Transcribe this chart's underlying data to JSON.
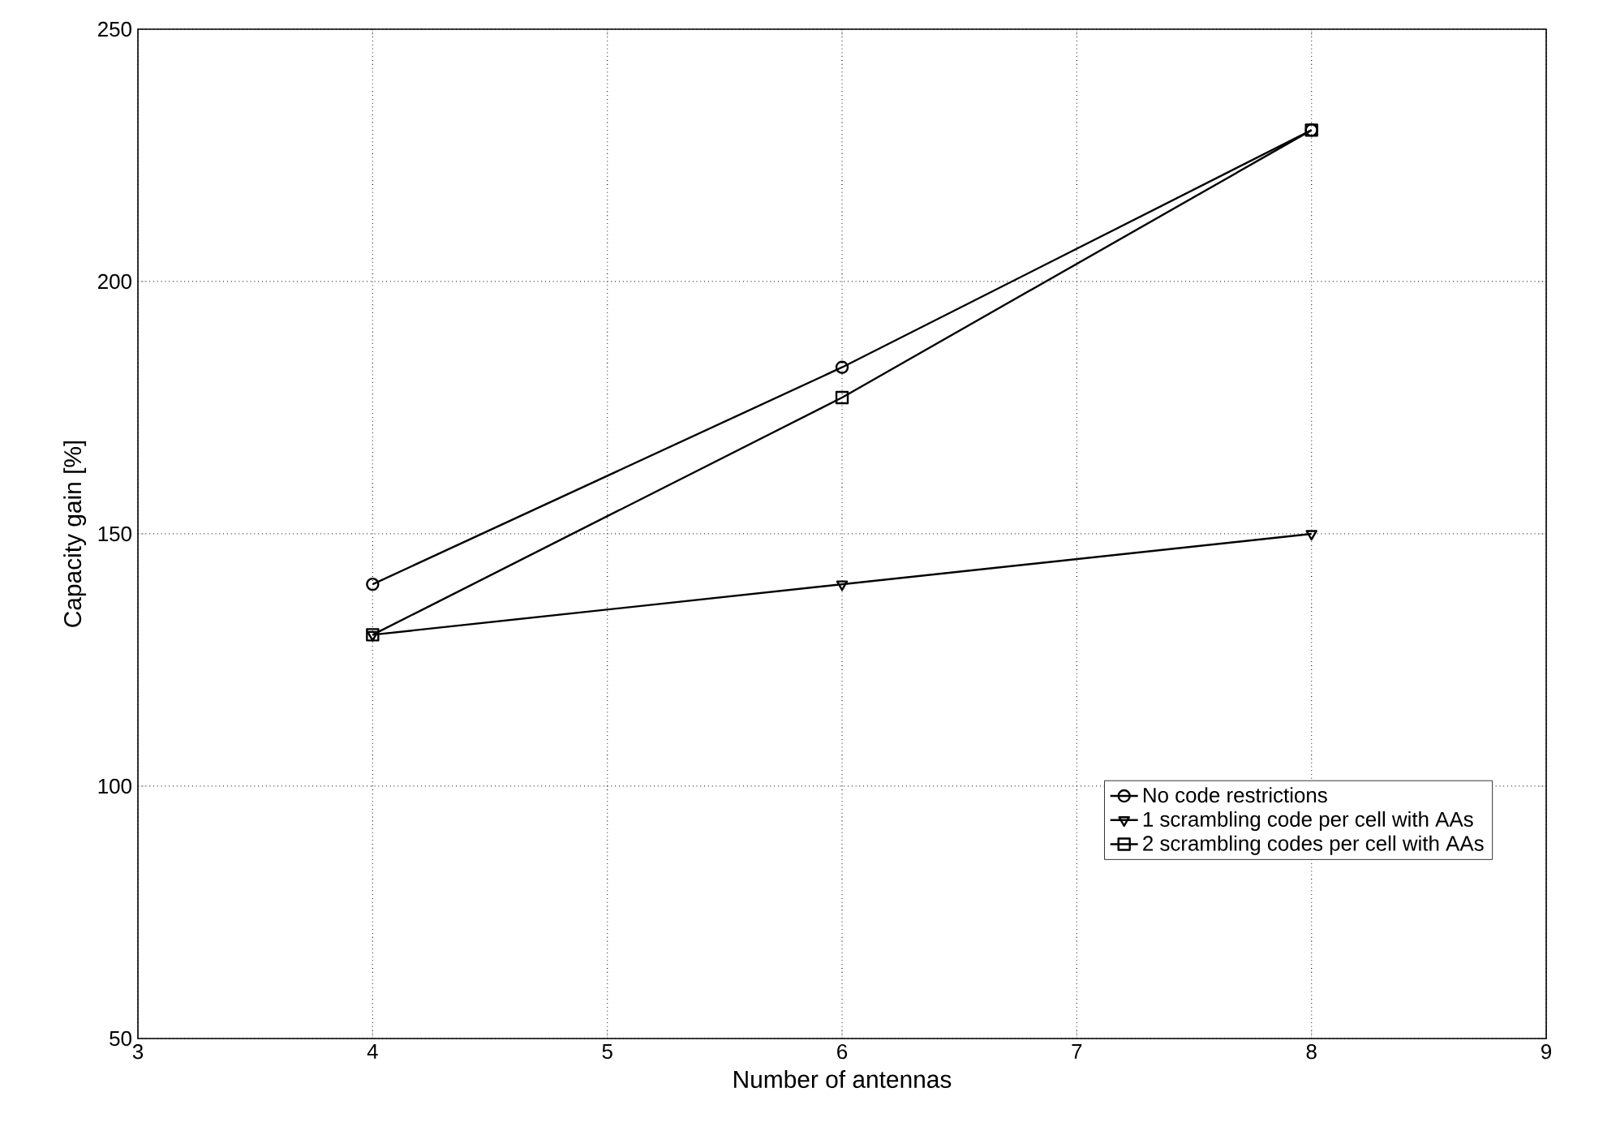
{
  "chart_data": {
    "type": "line",
    "xlabel": "Number of antennas",
    "ylabel": "Capacity gain [%]",
    "x": [
      4,
      6,
      8
    ],
    "series": [
      {
        "name": "No code restrictions",
        "color": "#000000",
        "marker": "circle",
        "values": [
          140,
          183,
          230
        ]
      },
      {
        "name": "1 scrambling code per cell with AAs",
        "color": "#000000",
        "marker": "triangle",
        "values": [
          130,
          140,
          150
        ]
      },
      {
        "name": "2 scrambling codes per cell with AAs",
        "color": "#000000",
        "marker": "square",
        "values": [
          130,
          177,
          230
        ]
      }
    ],
    "xlim": [
      3,
      9
    ],
    "xticks": [
      3,
      4,
      5,
      6,
      7,
      8,
      9
    ],
    "ylim": [
      50,
      250
    ],
    "yticks": [
      50,
      100,
      150,
      200,
      250
    ],
    "grid": true,
    "legend": "bottom right",
    "line_style": "solid"
  }
}
